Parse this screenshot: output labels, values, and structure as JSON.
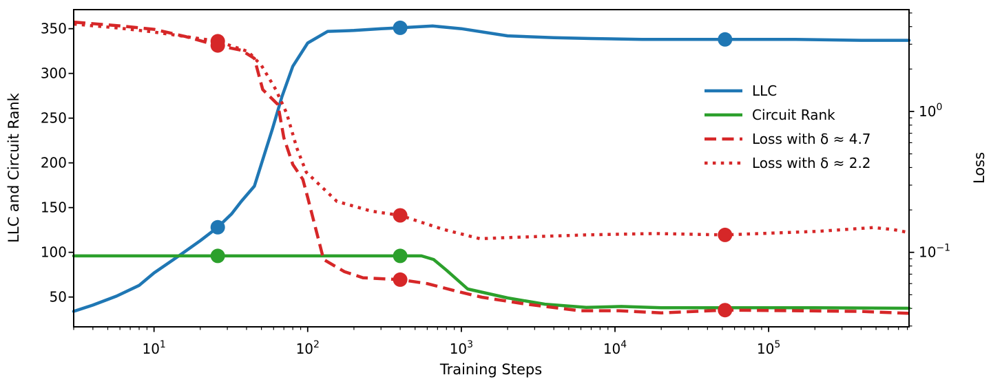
{
  "chart_data": {
    "type": "line",
    "title": "",
    "xlabel": "Training Steps",
    "ylabel_left": "LLC and Circuit Rank",
    "ylabel_right": "Loss",
    "x_scale": "log",
    "y_left_scale": "linear",
    "y_right_scale": "log",
    "xlim": [
      3,
      820000
    ],
    "ylim_left": [
      16.7,
      371.3
    ],
    "ylim_right": [
      0.0296,
      5.28
    ],
    "x_major_ticks": [
      10,
      100,
      1000,
      10000,
      100000
    ],
    "y_left_ticks": [
      50,
      100,
      150,
      200,
      250,
      300,
      350
    ],
    "y_right_major_ticks": [
      1,
      0.1
    ],
    "grid": false,
    "legend_position": "upper right inside, frameless",
    "marker_steps": [
      26,
      400,
      52000
    ],
    "colors": {
      "llc": "#1f77b4",
      "circuit_rank": "#2ca02c",
      "loss": "#d62728"
    },
    "series": [
      {
        "name": "LLC",
        "axis": "left",
        "color": "#1f77b4",
        "style": "solid",
        "points": [
          [
            3,
            34
          ],
          [
            4,
            41
          ],
          [
            5.7,
            51
          ],
          [
            8,
            63
          ],
          [
            10,
            77
          ],
          [
            14.5,
            96
          ],
          [
            20,
            113
          ],
          [
            26,
            128
          ],
          [
            32,
            143
          ],
          [
            37,
            157
          ],
          [
            45,
            174
          ],
          [
            59,
            238
          ],
          [
            68,
            274
          ],
          [
            80,
            308
          ],
          [
            100,
            334
          ],
          [
            135,
            347
          ],
          [
            200,
            348
          ],
          [
            300,
            350
          ],
          [
            400,
            351
          ],
          [
            650,
            353
          ],
          [
            1000,
            350
          ],
          [
            2000,
            342
          ],
          [
            4000,
            340
          ],
          [
            7000,
            339
          ],
          [
            15000,
            338
          ],
          [
            52000,
            338
          ],
          [
            150000,
            338
          ],
          [
            400000,
            337
          ],
          [
            820000,
            337
          ]
        ],
        "markers": [
          [
            26,
            128
          ],
          [
            400,
            351
          ],
          [
            52000,
            338
          ]
        ]
      },
      {
        "name": "Circuit Rank",
        "axis": "left",
        "color": "#2ca02c",
        "style": "solid",
        "points": [
          [
            3,
            96
          ],
          [
            550,
            96
          ],
          [
            660,
            92
          ],
          [
            800,
            80
          ],
          [
            1100,
            59
          ],
          [
            2000,
            49
          ],
          [
            3500,
            42
          ],
          [
            6500,
            38.5
          ],
          [
            11000,
            39.5
          ],
          [
            20000,
            38
          ],
          [
            52000,
            38
          ],
          [
            200000,
            38
          ],
          [
            820000,
            37.5
          ]
        ],
        "markers": [
          [
            26,
            96
          ],
          [
            400,
            96
          ]
        ]
      },
      {
        "name": "Loss with δ ≈ 4.7",
        "axis": "right",
        "color": "#d62728",
        "style": "dashed",
        "points": [
          [
            3,
            4.31
          ],
          [
            6,
            4.05
          ],
          [
            10,
            3.83
          ],
          [
            16,
            3.4
          ],
          [
            26,
            2.94
          ],
          [
            37,
            2.72
          ],
          [
            45,
            2.38
          ],
          [
            51,
            1.43
          ],
          [
            64,
            1.12
          ],
          [
            70,
            0.65
          ],
          [
            80,
            0.42
          ],
          [
            93,
            0.33
          ],
          [
            100,
            0.245
          ],
          [
            127,
            0.089
          ],
          [
            173,
            0.073
          ],
          [
            229,
            0.066
          ],
          [
            400,
            0.064
          ],
          [
            600,
            0.06
          ],
          [
            930,
            0.053
          ],
          [
            1360,
            0.048
          ],
          [
            2600,
            0.043
          ],
          [
            5900,
            0.0385
          ],
          [
            10600,
            0.0385
          ],
          [
            20000,
            0.0372
          ],
          [
            52000,
            0.0389
          ],
          [
            150000,
            0.0385
          ],
          [
            400000,
            0.0381
          ],
          [
            820000,
            0.0369
          ]
        ],
        "markers": [
          [
            26,
            2.94
          ],
          [
            400,
            0.064
          ],
          [
            52000,
            0.0389
          ]
        ]
      },
      {
        "name": "Loss with δ ≈ 2.2",
        "axis": "right",
        "color": "#d62728",
        "style": "dotted",
        "points": [
          [
            3,
            4.17
          ],
          [
            6,
            3.9
          ],
          [
            10,
            3.66
          ],
          [
            16,
            3.4
          ],
          [
            26,
            3.15
          ],
          [
            41,
            2.66
          ],
          [
            50,
            2.12
          ],
          [
            62,
            1.43
          ],
          [
            73,
            0.97
          ],
          [
            85,
            0.55
          ],
          [
            98,
            0.37
          ],
          [
            120,
            0.3
          ],
          [
            155,
            0.23
          ],
          [
            260,
            0.196
          ],
          [
            400,
            0.183
          ],
          [
            755,
            0.146
          ],
          [
            1320,
            0.125
          ],
          [
            2280,
            0.128
          ],
          [
            6470,
            0.133
          ],
          [
            18000,
            0.136
          ],
          [
            52000,
            0.133
          ],
          [
            210000,
            0.141
          ],
          [
            480000,
            0.15
          ],
          [
            650000,
            0.145
          ],
          [
            820000,
            0.138
          ]
        ],
        "markers": [
          [
            26,
            3.15
          ],
          [
            400,
            0.183
          ],
          [
            52000,
            0.133
          ]
        ]
      }
    ]
  }
}
